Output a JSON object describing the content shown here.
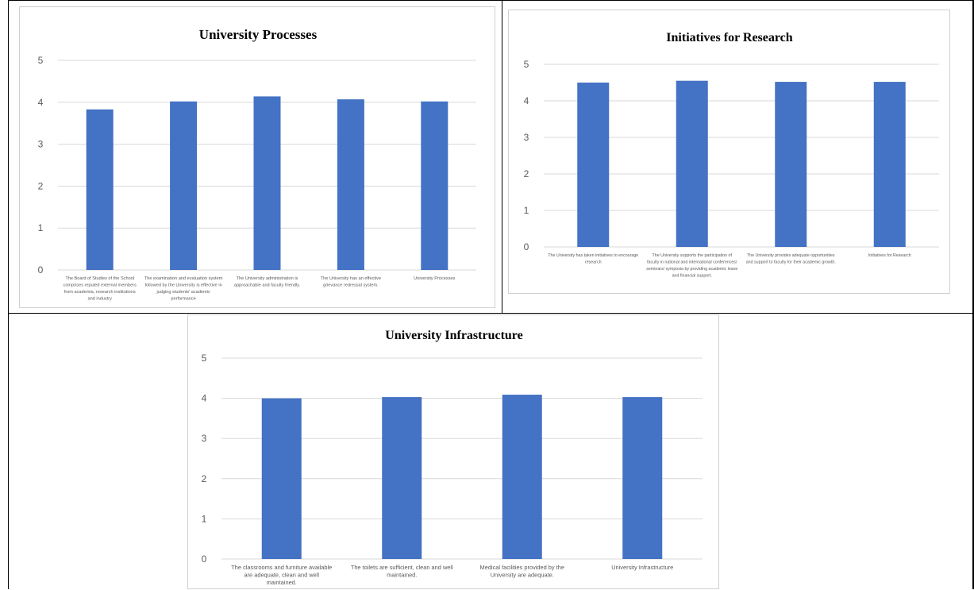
{
  "colors": {
    "bar": "#4472c4",
    "grid": "#d9d9d9",
    "axis_text": "#595959",
    "title": "#000000",
    "frame": "#000000"
  },
  "chart_data": [
    {
      "type": "bar",
      "title": "University Processes",
      "xlabel": "",
      "ylabel": "",
      "ylim": [
        0,
        5
      ],
      "yticks": [
        "0",
        "1",
        "2",
        "3",
        "4",
        "5"
      ],
      "grid": true,
      "categories": [
        [
          "The Board of Studies of the School",
          "comprises reputed external members",
          "from academia, research institutions",
          "and industry"
        ],
        [
          "The examination  and evaluation system",
          "followed by the University is effective in",
          "judging students' academic",
          "performance"
        ],
        [
          "The University administration is",
          "approachable and faculty friendly."
        ],
        [
          "The University has an effective",
          "grievance redressal system."
        ],
        [
          "University Processes"
        ]
      ],
      "values": [
        3.83,
        4.02,
        4.14,
        4.07,
        4.02
      ]
    },
    {
      "type": "bar",
      "title": "Initiatives for Research",
      "xlabel": "",
      "ylabel": "",
      "ylim": [
        0,
        5
      ],
      "yticks": [
        "0",
        "1",
        "2",
        "3",
        "4",
        "5"
      ],
      "grid": true,
      "categories": [
        [
          "The University has taken initiatives to encourage",
          "research"
        ],
        [
          "The University supports the participation of",
          "faculty in national and international conferences/",
          "seminars/ symposia by providing academic leave",
          "and financial support."
        ],
        [
          "The University provides adequate opportunities",
          "and support to faculty for their academic growth."
        ],
        [
          "Initiatives for Research"
        ]
      ],
      "values": [
        4.5,
        4.55,
        4.52,
        4.52
      ]
    },
    {
      "type": "bar",
      "title": "University Infrastructure",
      "xlabel": "",
      "ylabel": "",
      "ylim": [
        0,
        5
      ],
      "yticks": [
        "0",
        "1",
        "2",
        "3",
        "4",
        "5"
      ],
      "grid": true,
      "categories": [
        [
          "The classrooms and furniture available",
          "are adequate, clean and well",
          "maintained."
        ],
        [
          "The toilets are sufficient, clean and well",
          "maintained."
        ],
        [
          "Medical facilities provided by the",
          "University are adequate."
        ],
        [
          "University Infrastructure"
        ]
      ],
      "values": [
        4.0,
        4.03,
        4.09,
        4.03
      ]
    }
  ]
}
